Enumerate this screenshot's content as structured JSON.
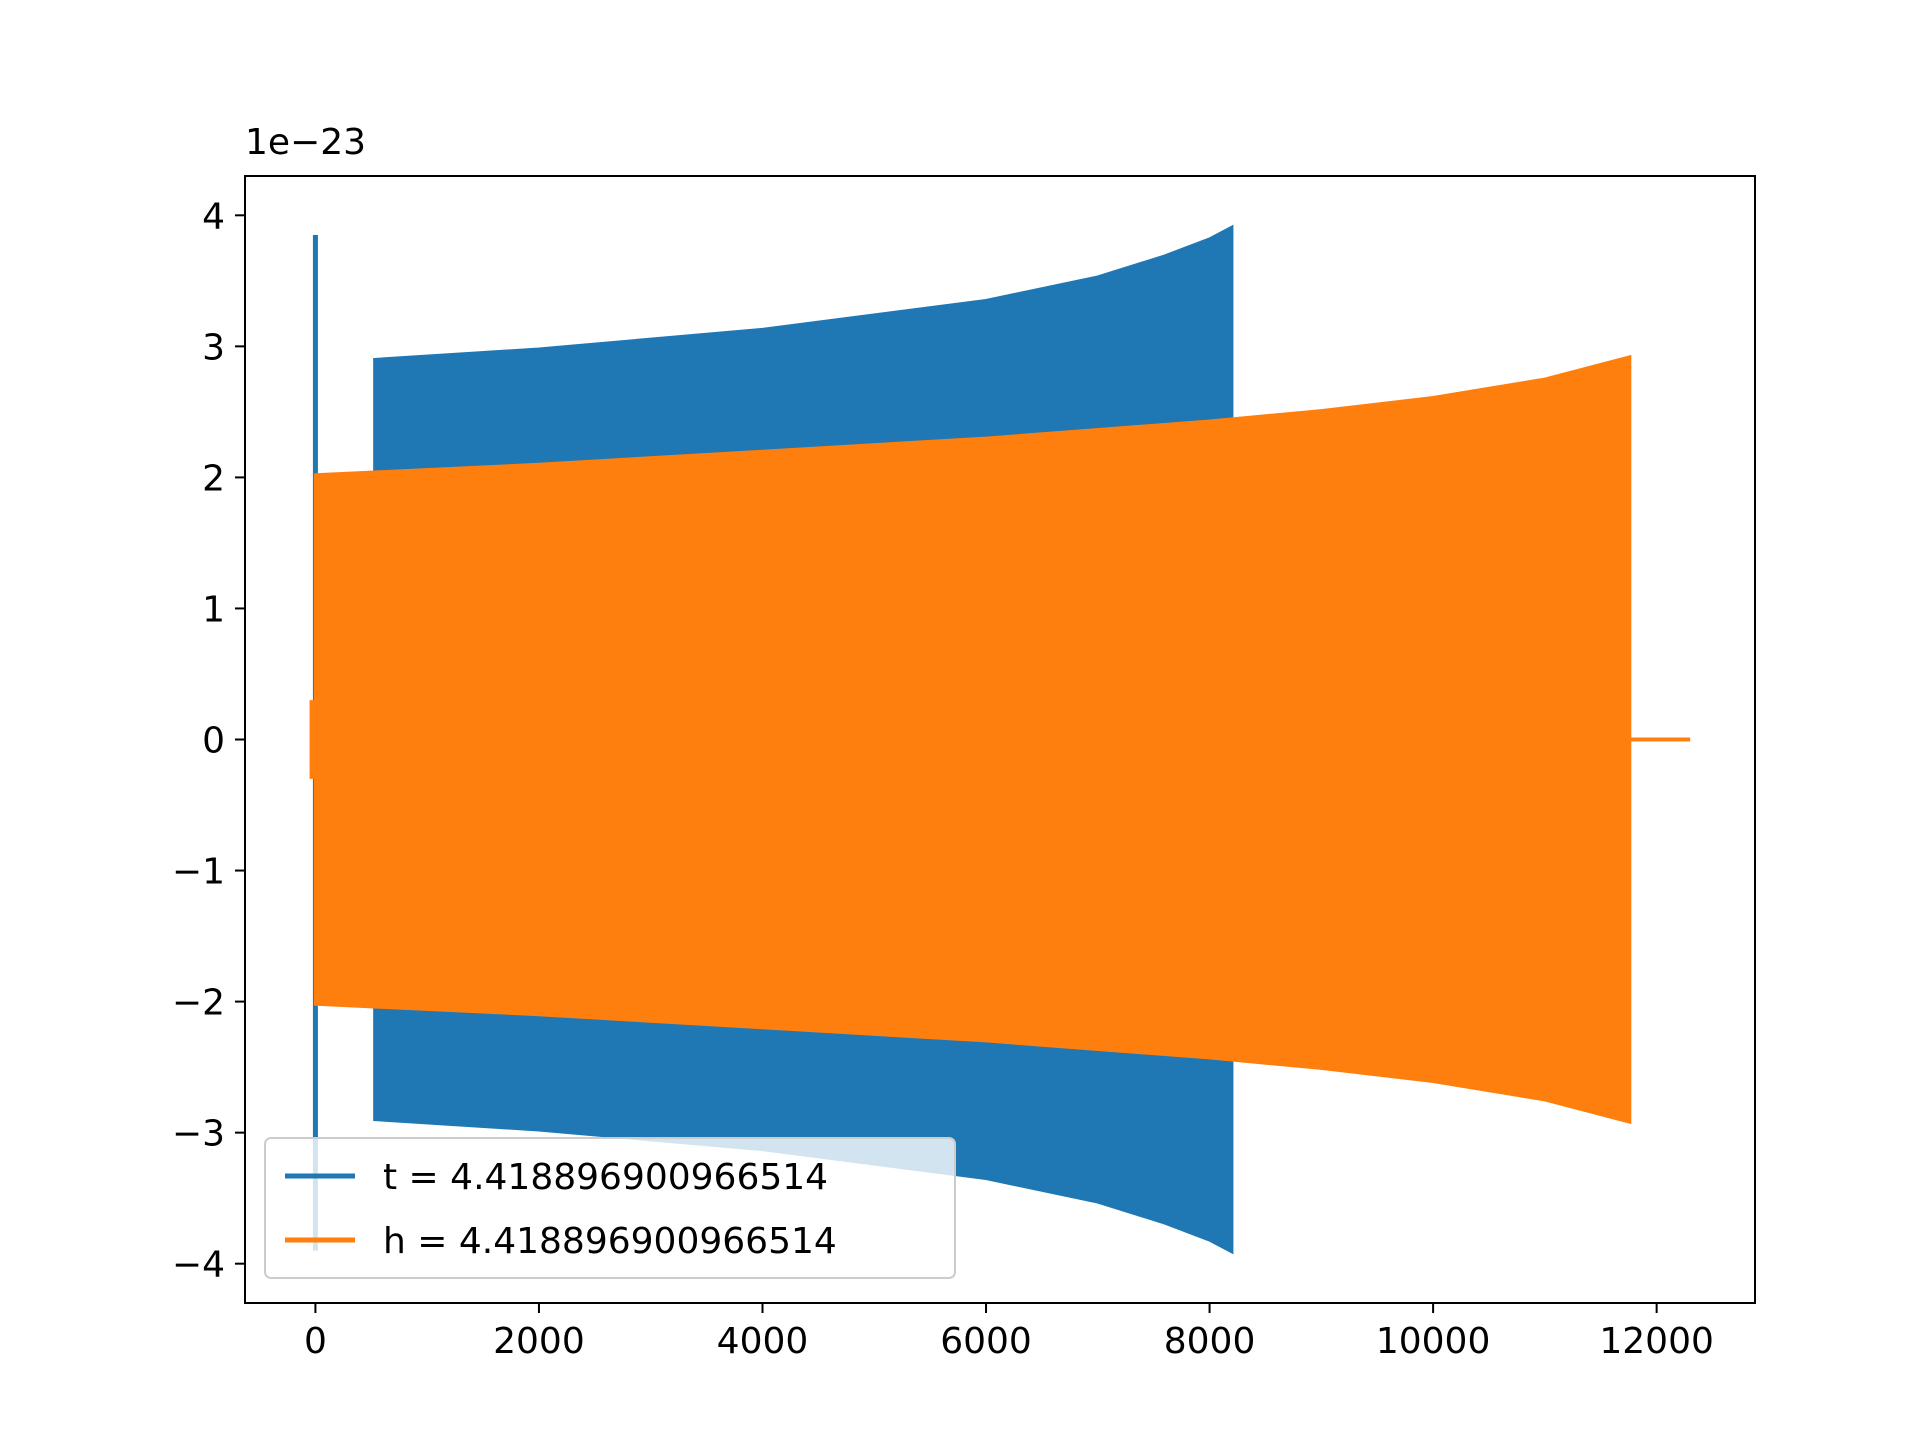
{
  "chart_data": {
    "type": "line",
    "title": "",
    "xlabel": "",
    "ylabel": "",
    "y_offset_label": "1e−23",
    "xlim": [
      -630,
      12880
    ],
    "ylim": [
      -4.3,
      4.3
    ],
    "x_ticks": [
      0,
      2000,
      4000,
      6000,
      8000,
      10000,
      12000
    ],
    "x_tick_labels": [
      "0",
      "2000",
      "4000",
      "6000",
      "8000",
      "10000",
      "12000"
    ],
    "y_ticks": [
      4,
      3,
      2,
      1,
      0,
      -1,
      -2,
      -3,
      -4
    ],
    "y_tick_labels": [
      "4",
      "3",
      "2",
      "1",
      "0",
      "−1",
      "−2",
      "−3",
      "−4"
    ],
    "grid": false,
    "legend_position": "lower-left",
    "series": [
      {
        "name": "t = 4.418896900966514",
        "color": "#1f77b4",
        "spike": {
          "x": 0,
          "ymin": -3.9,
          "ymax": 3.85
        },
        "envelope": {
          "x": [
            530,
            2000,
            4000,
            6000,
            7000,
            7600,
            8000,
            8200
          ],
          "amp": [
            2.9,
            2.98,
            3.13,
            3.35,
            3.53,
            3.69,
            3.82,
            3.91
          ]
        }
      },
      {
        "name": "h = 4.418896900966514",
        "color": "#ff7f0e",
        "spike": {
          "x": -30,
          "ymin": -0.3,
          "ymax": 0.3
        },
        "envelope": {
          "x": [
            0,
            2000,
            4000,
            6000,
            8000,
            9000,
            10000,
            11000,
            11760
          ],
          "amp": [
            2.02,
            2.1,
            2.2,
            2.3,
            2.43,
            2.51,
            2.61,
            2.75,
            2.92
          ]
        },
        "tail": {
          "x": [
            11760,
            12300
          ],
          "y": [
            0,
            0
          ]
        }
      }
    ]
  }
}
